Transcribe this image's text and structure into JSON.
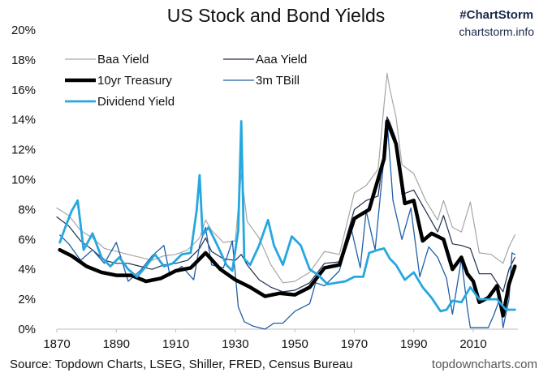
{
  "chart_data": {
    "type": "line",
    "title": "US Stock and Bond Yields",
    "brand": {
      "hashtag": "#ChartStorm",
      "site": "chartstorm.info"
    },
    "source": "Source: Topdown Charts, LSEG, Shiller, FRED, Census Bureau",
    "footer_site": "topdowncharts.com",
    "xlabel": "",
    "ylabel": "",
    "xlim": [
      1870,
      2025
    ],
    "ylim": [
      0,
      20
    ],
    "x_ticks": [
      1870,
      1890,
      1910,
      1930,
      1950,
      1970,
      1990,
      2010
    ],
    "y_ticks": [
      0,
      2,
      4,
      6,
      8,
      10,
      12,
      14,
      16,
      18,
      20
    ],
    "y_tick_labels": [
      "0%",
      "2%",
      "4%",
      "6%",
      "8%",
      "10%",
      "12%",
      "14%",
      "16%",
      "18%",
      "20%"
    ],
    "legend": "top-left",
    "grid": false,
    "series": [
      {
        "name": "Baa Yield",
        "color": "#a6a6a6",
        "width": 1.2,
        "x": [
          1870,
          1874,
          1878,
          1882,
          1886,
          1890,
          1894,
          1898,
          1902,
          1906,
          1910,
          1914,
          1918,
          1920,
          1922,
          1926,
          1930,
          1932,
          1934,
          1938,
          1942,
          1946,
          1950,
          1955,
          1960,
          1965,
          1970,
          1974,
          1978,
          1980,
          1981,
          1982,
          1984,
          1986,
          1990,
          1994,
          1998,
          2000,
          2003,
          2006,
          2009,
          2012,
          2016,
          2020,
          2022,
          2024
        ],
        "values": [
          8.1,
          7.6,
          6.6,
          6.1,
          5.4,
          5.2,
          5.0,
          4.8,
          4.6,
          4.9,
          5.0,
          5.3,
          6.1,
          7.3,
          6.6,
          5.8,
          5.9,
          10.4,
          7.2,
          6.1,
          4.3,
          3.1,
          3.2,
          3.8,
          5.2,
          5.0,
          9.1,
          9.6,
          10.7,
          15.0,
          17.1,
          16.0,
          14.2,
          11.0,
          10.4,
          8.6,
          7.3,
          8.6,
          6.8,
          6.5,
          8.5,
          5.1,
          5.0,
          4.4,
          5.5,
          6.3
        ]
      },
      {
        "name": "Aaa Yield",
        "color": "#1f2d4d",
        "width": 1.2,
        "x": [
          1870,
          1874,
          1878,
          1882,
          1886,
          1890,
          1894,
          1898,
          1902,
          1906,
          1910,
          1914,
          1918,
          1920,
          1922,
          1926,
          1930,
          1932,
          1934,
          1938,
          1942,
          1946,
          1950,
          1955,
          1960,
          1965,
          1970,
          1974,
          1978,
          1980,
          1981,
          1982,
          1984,
          1986,
          1990,
          1994,
          1998,
          2000,
          2003,
          2006,
          2009,
          2012,
          2016,
          2020,
          2022,
          2024
        ],
        "values": [
          7.5,
          6.9,
          5.9,
          5.3,
          4.6,
          4.4,
          4.4,
          4.2,
          4.0,
          4.3,
          4.4,
          4.6,
          5.4,
          6.1,
          5.2,
          4.7,
          4.6,
          5.0,
          4.3,
          3.3,
          2.8,
          2.5,
          2.6,
          3.1,
          4.4,
          4.5,
          8.0,
          8.6,
          8.9,
          11.9,
          14.2,
          13.8,
          12.7,
          9.0,
          9.3,
          7.9,
          6.5,
          7.6,
          5.7,
          5.6,
          5.4,
          3.7,
          3.7,
          2.5,
          4.0,
          4.8
        ]
      },
      {
        "name": "10yr Treasury",
        "color": "#000000",
        "width": 4.5,
        "x": [
          1871,
          1875,
          1880,
          1885,
          1890,
          1895,
          1900,
          1905,
          1910,
          1915,
          1920,
          1925,
          1930,
          1935,
          1940,
          1945,
          1950,
          1955,
          1960,
          1965,
          1970,
          1975,
          1980,
          1981,
          1984,
          1987,
          1990,
          1993,
          1996,
          2000,
          2003,
          2006,
          2008,
          2010,
          2012,
          2015,
          2018,
          2020,
          2022,
          2024
        ],
        "values": [
          5.3,
          4.9,
          4.2,
          3.8,
          3.6,
          3.6,
          3.2,
          3.4,
          3.9,
          4.1,
          5.1,
          4.0,
          3.3,
          2.8,
          2.2,
          2.4,
          2.3,
          2.8,
          4.1,
          4.3,
          7.4,
          8.0,
          11.4,
          13.9,
          12.4,
          8.4,
          8.6,
          5.9,
          6.4,
          6.0,
          4.0,
          4.8,
          3.7,
          3.2,
          1.8,
          2.1,
          2.9,
          0.9,
          3.0,
          4.2
        ]
      },
      {
        "name": "3m TBill",
        "color": "#1f5fa8",
        "width": 1.3,
        "x": [
          1871,
          1874,
          1878,
          1882,
          1886,
          1890,
          1894,
          1898,
          1902,
          1906,
          1908,
          1912,
          1916,
          1918,
          1920,
          1922,
          1926,
          1929,
          1931,
          1933,
          1936,
          1940,
          1943,
          1946,
          1950,
          1955,
          1957,
          1960,
          1965,
          1969,
          1972,
          1974,
          1977,
          1980,
          1981,
          1983,
          1986,
          1989,
          1992,
          1995,
          1998,
          2001,
          2003,
          2006,
          2008,
          2009,
          2015,
          2017,
          2019,
          2020,
          2022,
          2023,
          2024
        ],
        "values": [
          6.3,
          5.7,
          4.6,
          5.3,
          4.4,
          5.8,
          3.2,
          3.9,
          4.9,
          5.6,
          3.6,
          4.2,
          3.3,
          5.6,
          6.8,
          4.3,
          4.1,
          5.9,
          1.5,
          0.5,
          0.2,
          0.0,
          0.4,
          0.4,
          1.2,
          1.7,
          3.1,
          2.9,
          3.9,
          6.7,
          4.1,
          7.9,
          5.3,
          11.5,
          14.0,
          8.6,
          6.0,
          8.1,
          3.5,
          5.5,
          4.8,
          3.4,
          1.0,
          4.7,
          1.4,
          0.1,
          0.1,
          1.0,
          2.1,
          0.1,
          2.0,
          5.1,
          5.0
        ]
      },
      {
        "name": "Dividend Yield",
        "color": "#25a7e0",
        "width": 2.8,
        "x": [
          1871,
          1873,
          1875,
          1877,
          1879,
          1882,
          1885,
          1888,
          1891,
          1894,
          1897,
          1900,
          1903,
          1906,
          1909,
          1912,
          1915,
          1917,
          1918,
          1919,
          1921,
          1924,
          1927,
          1929,
          1931,
          1932,
          1933,
          1935,
          1938,
          1941,
          1943,
          1946,
          1949,
          1952,
          1955,
          1958,
          1961,
          1964,
          1967,
          1970,
          1973,
          1975,
          1978,
          1980,
          1982,
          1984,
          1987,
          1990,
          1993,
          1996,
          1999,
          2001,
          2003,
          2006,
          2009,
          2012,
          2015,
          2018,
          2021,
          2024
        ],
        "values": [
          5.8,
          6.9,
          7.9,
          8.6,
          5.3,
          6.4,
          4.8,
          4.2,
          4.8,
          4.0,
          3.5,
          4.2,
          5.0,
          4.2,
          4.4,
          5.0,
          5.1,
          7.9,
          10.3,
          6.3,
          6.8,
          5.6,
          4.3,
          3.9,
          6.6,
          13.9,
          4.7,
          4.3,
          5.6,
          7.3,
          5.6,
          4.3,
          6.2,
          5.6,
          4.0,
          3.6,
          3.0,
          3.1,
          3.2,
          3.5,
          3.5,
          5.1,
          5.3,
          5.4,
          4.7,
          4.3,
          3.3,
          3.8,
          2.8,
          2.1,
          1.2,
          1.3,
          1.9,
          1.8,
          2.8,
          2.0,
          2.0,
          2.0,
          1.3,
          1.3
        ]
      }
    ],
    "legend_items": [
      {
        "label": "Baa Yield",
        "series": 0,
        "col": 0,
        "row": 0
      },
      {
        "label": "Aaa Yield",
        "series": 1,
        "col": 1,
        "row": 0
      },
      {
        "label": "10yr Treasury",
        "series": 2,
        "col": 0,
        "row": 1
      },
      {
        "label": "3m TBill",
        "series": 3,
        "col": 1,
        "row": 1
      },
      {
        "label": "Dividend Yield",
        "series": 4,
        "col": 0,
        "row": 2
      }
    ]
  }
}
